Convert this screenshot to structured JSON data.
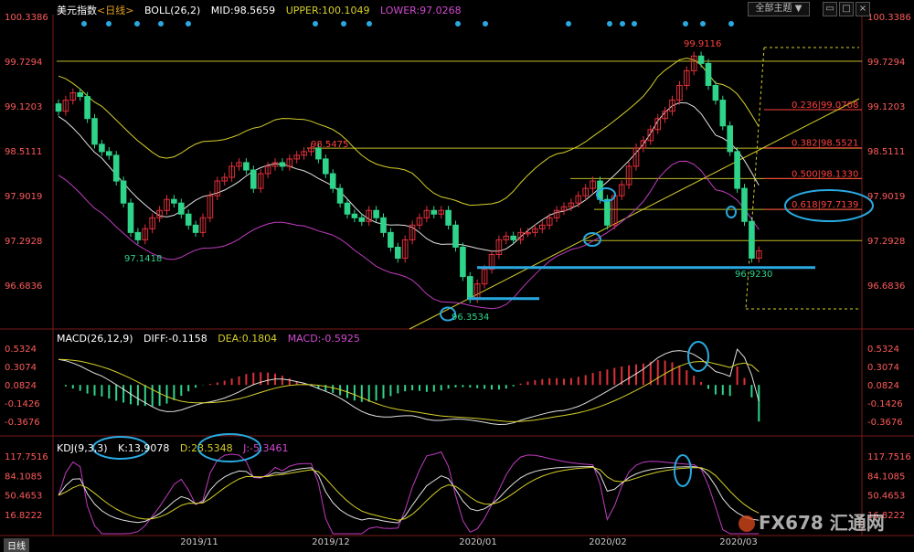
{
  "header": {
    "symbol": "美元指数",
    "period": "<日线>",
    "boll_label": "BOLL(26,2)",
    "mid": "MID:98.5659",
    "upper": "UPPER:100.1049",
    "lower": "LOWER:97.0268",
    "theme_button": "全部主题",
    "theme_arrow": "▼"
  },
  "macd": {
    "label": "MACD(26,12,9)",
    "diff": "DIFF:-0.1158",
    "dea": "DEA:0.1804",
    "macd": "MACD:-0.5925"
  },
  "kdj": {
    "label": "KDJ(9,3,3)",
    "k": "K:13.9078",
    "d": "D:23.5348",
    "j": "J:-5.3461"
  },
  "bottom_tab": "日线",
  "watermark": "FX678 汇通网",
  "colors": {
    "bg": "#000000",
    "up": "#e0303a",
    "down": "#2fd48b",
    "mid_line": "#e0e0e0",
    "upper_line": "#d6cf2a",
    "lower_line": "#c03cc0",
    "highlight": "#29a9e0",
    "fib": "#ff4040"
  },
  "chart_data": [
    {
      "type": "candlestick",
      "title": "美元指数 <日线>",
      "y_ticks": [
        "100.3386",
        "99.7294",
        "99.1203",
        "98.5111",
        "97.9019",
        "97.2928",
        "96.6836"
      ],
      "ylim": [
        96.35,
        100.34
      ],
      "x_ticks": [
        "2019/11",
        "2019/12",
        "2020/01",
        "2020/02",
        "2020/03"
      ],
      "close": [
        99.05,
        99.2,
        99.3,
        99.25,
        98.95,
        98.6,
        98.5,
        98.45,
        98.1,
        97.8,
        97.4,
        97.3,
        97.45,
        97.6,
        97.7,
        97.85,
        97.8,
        97.65,
        97.5,
        97.4,
        97.6,
        97.9,
        98.1,
        98.15,
        98.3,
        98.35,
        98.25,
        98.0,
        98.2,
        98.3,
        98.35,
        98.3,
        98.4,
        98.45,
        98.5,
        98.55,
        98.4,
        98.2,
        98.0,
        97.8,
        97.65,
        97.6,
        97.55,
        97.7,
        97.6,
        97.4,
        97.2,
        97.05,
        97.3,
        97.5,
        97.6,
        97.7,
        97.65,
        97.7,
        97.5,
        97.2,
        96.8,
        96.5,
        96.7,
        96.9,
        97.1,
        97.3,
        97.35,
        97.3,
        97.4,
        97.4,
        97.45,
        97.5,
        97.6,
        97.7,
        97.75,
        97.8,
        97.9,
        98.0,
        98.1,
        97.85,
        97.5,
        97.9,
        98.05,
        98.3,
        98.55,
        98.65,
        98.8,
        98.95,
        99.05,
        99.2,
        99.4,
        99.6,
        99.8,
        99.7,
        99.4,
        99.2,
        98.85,
        98.5,
        98.0,
        97.55,
        97.05,
        97.15
      ],
      "labels": {
        "high_1": "98.5475",
        "high_2": "99.9116",
        "low_1": "97.1418",
        "low_2": "96.3534",
        "low_3": "96.9230"
      },
      "fib_levels": [
        "0.236|99.0708",
        "0.382|98.5521",
        "0.500|98.1330",
        "0.618|97.7139"
      ]
    },
    {
      "type": "bar",
      "title": "MACD(26,12,9)",
      "y_ticks": [
        "0.5324",
        "0.3074",
        "0.0824",
        "-0.1426",
        "-0.3676"
      ],
      "ylim": [
        -0.48,
        0.6
      ]
    },
    {
      "type": "line",
      "title": "KDJ(9,3,3)",
      "y_ticks": [
        "117.7516",
        "84.1085",
        "50.4653",
        "16.8222"
      ],
      "ylim": [
        0,
        125
      ]
    }
  ]
}
